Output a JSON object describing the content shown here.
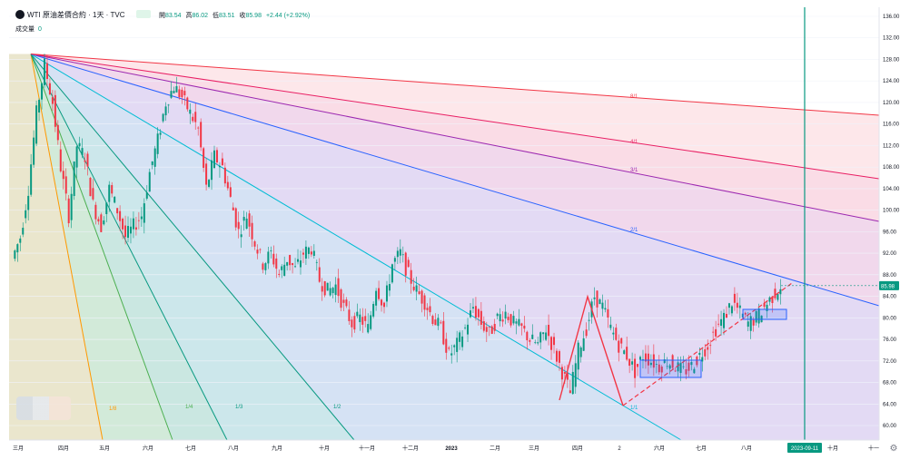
{
  "header": {
    "symbol": "WTI 原油差價合約 · 1天 · TVC",
    "open_label": "開",
    "open": "83.54",
    "high_label": "高",
    "high": "86.02",
    "low_label": "低",
    "low": "83.51",
    "close_label": "收",
    "close": "85.98",
    "change": "+2.44 (+2.92%)",
    "volume_label": "成交量",
    "volume": "0"
  },
  "chart_data": {
    "type": "candlestick",
    "title": "WTI 原油差價合約 · 1天 · TVC",
    "ylim": [
      58,
      138
    ],
    "y_ticks": [
      "136.00",
      "132.00",
      "128.00",
      "124.00",
      "120.00",
      "116.00",
      "112.00",
      "108.00",
      "104.00",
      "100.00",
      "96.00",
      "92.00",
      "88.00",
      "84.00",
      "80.00",
      "76.00",
      "72.00",
      "68.00",
      "64.00",
      "60.00"
    ],
    "x_labels": [
      "三月",
      "四月",
      "五月",
      "六月",
      "七月",
      "八月",
      "九月",
      "十月",
      "十一月",
      "十二月",
      "2023",
      "二月",
      "三月",
      "四月",
      "2",
      "六月",
      "七月",
      "八月",
      "十月",
      "十一"
    ],
    "current_price": "85.98",
    "current_price_color": "#089981",
    "highlight_date": "2023-09-11",
    "candle_up_color": "#089981",
    "candle_down_color": "#f23645",
    "price_path": [
      91,
      95,
      104,
      118,
      127,
      120,
      108,
      99,
      112,
      110,
      101,
      97,
      104,
      100,
      95,
      97,
      99,
      107,
      113,
      120,
      123,
      121,
      118,
      115,
      104,
      110,
      108,
      102,
      96,
      99,
      94,
      90,
      92,
      88,
      91,
      89,
      92,
      93,
      87,
      85,
      86,
      82,
      79,
      80,
      78,
      86,
      82,
      90,
      92,
      88,
      85,
      83,
      80,
      78,
      73,
      75,
      78,
      82,
      79,
      77,
      80,
      81,
      79,
      78,
      76,
      75,
      78,
      74,
      70,
      66,
      74,
      78,
      84,
      82,
      78,
      75,
      73,
      70,
      73,
      72,
      71,
      72,
      71,
      70,
      71,
      73,
      75,
      78,
      80,
      83,
      81,
      79,
      80,
      82,
      84,
      85.98
    ],
    "fan": {
      "origin": "2022-03-08",
      "origin_price": 129,
      "lines": [
        {
          "label": "1/8",
          "color": "#ff9800"
        },
        {
          "label": "1/4",
          "color": "#4caf50"
        },
        {
          "label": "1/3",
          "color": "#089981"
        },
        {
          "label": "1/2",
          "color": "#089981"
        },
        {
          "label": "1/1",
          "color": "#00bcd4"
        },
        {
          "label": "2/1",
          "color": "#2962ff"
        },
        {
          "label": "3/1",
          "color": "#9c27b0"
        },
        {
          "label": "4/1",
          "color": "#e91e63"
        },
        {
          "label": "8/1",
          "color": "#f23645"
        }
      ]
    },
    "annotations": {
      "zigzag_color": "#f23645",
      "ranges_color": "#2962ff"
    }
  }
}
